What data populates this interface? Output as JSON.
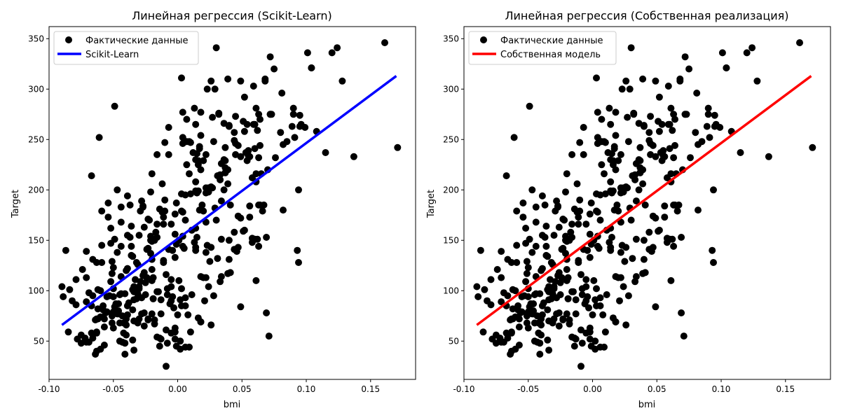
{
  "chart_data": [
    {
      "type": "scatter",
      "title": "Линейная регрессия (Scikit-Learn)",
      "xlabel": "bmi",
      "ylabel": "Target",
      "xlim": [
        -0.1,
        0.185
      ],
      "ylim": [
        12,
        362
      ],
      "xticks": [
        "-0.10",
        "-0.05",
        "0.00",
        "0.05",
        "0.10",
        "0.15"
      ],
      "yticks": [
        "50",
        "100",
        "150",
        "200",
        "250",
        "300",
        "350"
      ],
      "legend": {
        "placement": "top-left",
        "scatter_label": "Фактические данные",
        "line_label": "Scikit-Learn"
      },
      "line_color": "#0000ff",
      "line": {
        "x": [
          -0.09,
          0.17
        ],
        "y": [
          66,
          313
        ]
      }
    },
    {
      "type": "scatter",
      "title": "Линейная регрессия (Собственная реализация)",
      "xlabel": "bmi",
      "ylabel": "Target",
      "xlim": [
        -0.1,
        0.185
      ],
      "ylim": [
        12,
        362
      ],
      "xticks": [
        "-0.10",
        "-0.05",
        "0.00",
        "0.05",
        "0.10",
        "0.15"
      ],
      "yticks": [
        "50",
        "100",
        "150",
        "200",
        "250",
        "300",
        "350"
      ],
      "legend": {
        "placement": "top-left",
        "scatter_label": "Фактические данные",
        "line_label": "Собственная модель"
      },
      "line_color": "#ff0000",
      "line": {
        "x": [
          -0.09,
          0.17
        ],
        "y": [
          66,
          313
        ]
      }
    }
  ],
  "scatter_points": [
    [
      0.062,
      151
    ],
    [
      -0.051,
      75
    ],
    [
      0.044,
      141
    ],
    [
      -0.012,
      206
    ],
    [
      -0.036,
      135
    ],
    [
      -0.041,
      97
    ],
    [
      -0.047,
      138
    ],
    [
      -0.002,
      63
    ],
    [
      0.061,
      110
    ],
    [
      0.039,
      310
    ],
    [
      -0.084,
      101
    ],
    [
      0.018,
      69
    ],
    [
      -0.029,
      179
    ],
    [
      0.067,
      185
    ],
    [
      -0.026,
      118
    ],
    [
      -0.023,
      171
    ],
    [
      -0.005,
      166
    ],
    [
      0.063,
      144
    ],
    [
      -0.031,
      97
    ],
    [
      -0.044,
      168
    ],
    [
      -0.051,
      68
    ],
    [
      -0.069,
      49
    ],
    [
      -0.042,
      68
    ],
    [
      0.082,
      245
    ],
    [
      0.056,
      184
    ],
    [
      0.022,
      202
    ],
    [
      -0.021,
      137
    ],
    [
      0.006,
      85
    ],
    [
      -0.02,
      131
    ],
    [
      -0.049,
      283
    ],
    [
      0.025,
      129
    ],
    [
      -0.063,
      59
    ],
    [
      0.03,
      341
    ],
    [
      -0.046,
      87
    ],
    [
      -0.026,
      65
    ],
    [
      -0.05,
      102
    ],
    [
      0.059,
      265
    ],
    [
      0.032,
      276
    ],
    [
      0.004,
      252
    ],
    [
      0.021,
      90
    ],
    [
      0.128,
      308
    ],
    [
      0.051,
      268
    ],
    [
      -0.072,
      53
    ],
    [
      -0.013,
      52
    ],
    [
      -0.059,
      145
    ],
    [
      0.024,
      202
    ],
    [
      0.028,
      95
    ],
    [
      0.02,
      179
    ],
    [
      -0.071,
      113
    ],
    [
      0.033,
      215
    ],
    [
      -0.01,
      247
    ],
    [
      -0.038,
      88
    ],
    [
      0.058,
      212
    ],
    [
      -0.051,
      117
    ],
    [
      0.047,
      143
    ],
    [
      0.082,
      180
    ],
    [
      -0.048,
      87
    ],
    [
      -0.046,
      80
    ],
    [
      0.04,
      264
    ],
    [
      -0.066,
      53
    ],
    [
      -0.018,
      67
    ],
    [
      -0.045,
      68
    ],
    [
      0.011,
      96
    ],
    [
      -0.034,
      70
    ],
    [
      0.049,
      172
    ],
    [
      -0.04,
      66
    ],
    [
      -0.054,
      187
    ],
    [
      -0.014,
      45
    ],
    [
      0.014,
      162
    ],
    [
      -0.047,
      200
    ],
    [
      0.091,
      252
    ],
    [
      -0.028,
      93
    ],
    [
      0.015,
      236
    ],
    [
      0.09,
      281
    ],
    [
      0.004,
      154
    ],
    [
      -0.028,
      77
    ],
    [
      0.052,
      258
    ],
    [
      -0.063,
      128
    ],
    [
      -0.026,
      78
    ],
    [
      -0.075,
      48
    ],
    [
      0.003,
      85
    ],
    [
      -0.067,
      58
    ],
    [
      0.049,
      233
    ],
    [
      -0.056,
      78
    ],
    [
      0.014,
      230
    ],
    [
      -0.016,
      99
    ],
    [
      0.037,
      217
    ],
    [
      -0.001,
      187
    ],
    [
      0.027,
      202
    ],
    [
      -0.024,
      141
    ],
    [
      0.015,
      197
    ],
    [
      0.063,
      185
    ],
    [
      0.115,
      237
    ],
    [
      0.026,
      308
    ],
    [
      -0.034,
      91
    ],
    [
      0.009,
      216
    ],
    [
      -0.007,
      141
    ],
    [
      -0.002,
      59
    ],
    [
      0.045,
      273
    ],
    [
      0.075,
      320
    ],
    [
      -0.008,
      48
    ],
    [
      -0.063,
      58
    ],
    [
      0.02,
      113
    ],
    [
      0.052,
      292
    ],
    [
      0.036,
      230
    ],
    [
      -0.014,
      181
    ],
    [
      -0.011,
      128
    ],
    [
      0.039,
      206
    ],
    [
      0.007,
      270
    ],
    [
      0.018,
      254
    ],
    [
      -0.036,
      164
    ],
    [
      0.071,
      55
    ],
    [
      -0.002,
      156
    ],
    [
      -0.06,
      74
    ],
    [
      0.026,
      203
    ],
    [
      -0.022,
      170
    ],
    [
      0.031,
      214
    ],
    [
      -0.005,
      111
    ],
    [
      0.013,
      281
    ],
    [
      -0.052,
      162
    ],
    [
      0.124,
      341
    ],
    [
      0.017,
      241
    ],
    [
      -0.03,
      104
    ],
    [
      -0.044,
      114
    ],
    [
      0.004,
      246
    ],
    [
      -0.078,
      52
    ],
    [
      -0.023,
      72
    ],
    [
      0.034,
      114
    ],
    [
      -0.036,
      144
    ],
    [
      -0.017,
      158
    ],
    [
      0.066,
      179
    ],
    [
      0.031,
      132
    ],
    [
      -0.002,
      133
    ],
    [
      -0.057,
      46
    ],
    [
      0.036,
      266
    ],
    [
      -0.016,
      166
    ],
    [
      -0.059,
      179
    ],
    [
      0.026,
      66
    ],
    [
      -0.052,
      109
    ],
    [
      -0.045,
      96
    ],
    [
      -0.032,
      128
    ],
    [
      0.096,
      265
    ],
    [
      -0.04,
      72
    ],
    [
      0.006,
      93
    ],
    [
      -0.062,
      72
    ],
    [
      0.002,
      42
    ],
    [
      -0.079,
      86
    ],
    [
      -0.069,
      98
    ],
    [
      -0.043,
      49
    ],
    [
      0.047,
      244
    ],
    [
      -0.019,
      92
    ],
    [
      -0.018,
      71
    ],
    [
      -0.008,
      102
    ],
    [
      0.008,
      76
    ],
    [
      -0.015,
      99
    ],
    [
      0.062,
      259
    ],
    [
      0.034,
      151
    ],
    [
      -0.001,
      45
    ],
    [
      0.053,
      237
    ],
    [
      0.06,
      241
    ],
    [
      -0.074,
      121
    ],
    [
      0.058,
      152
    ],
    [
      -0.035,
      51
    ],
    [
      -0.039,
      194
    ],
    [
      -0.01,
      190
    ],
    [
      0.069,
      153
    ],
    [
      -0.013,
      77
    ],
    [
      0.076,
      232
    ],
    [
      -0.01,
      179
    ],
    [
      -0.034,
      99
    ],
    [
      0.022,
      138
    ],
    [
      -0.071,
      49
    ],
    [
      0.08,
      257
    ],
    [
      0.072,
      275
    ],
    [
      0.055,
      234
    ],
    [
      0.089,
      263
    ],
    [
      -0.005,
      104
    ],
    [
      -0.001,
      146
    ],
    [
      -0.032,
      92
    ],
    [
      -0.064,
      71
    ],
    [
      0.018,
      220
    ],
    [
      0.056,
      233
    ],
    [
      -0.006,
      87
    ],
    [
      -0.025,
      96
    ],
    [
      -0.05,
      123
    ],
    [
      -0.002,
      52
    ],
    [
      -0.062,
      82
    ],
    [
      -0.02,
      149
    ],
    [
      0.0,
      76
    ],
    [
      -0.057,
      64
    ],
    [
      0.005,
      142
    ],
    [
      0.032,
      275
    ],
    [
      -0.039,
      155
    ],
    [
      0.016,
      229
    ],
    [
      0.018,
      277
    ],
    [
      -0.066,
      131
    ],
    [
      0.044,
      257
    ],
    [
      -0.023,
      142
    ],
    [
      0.073,
      275
    ],
    [
      -0.037,
      153
    ],
    [
      0.041,
      118
    ],
    [
      -0.009,
      116
    ],
    [
      0.004,
      144
    ],
    [
      0.014,
      199
    ],
    [
      -0.035,
      101
    ],
    [
      0.039,
      220
    ],
    [
      -0.082,
      90
    ],
    [
      -0.066,
      95
    ],
    [
      0.059,
      303
    ],
    [
      -0.011,
      173
    ],
    [
      -0.046,
      77
    ],
    [
      0.108,
      258
    ],
    [
      0.003,
      179
    ],
    [
      -0.071,
      139
    ],
    [
      0.045,
      235
    ],
    [
      -0.041,
      48
    ],
    [
      0.049,
      308
    ],
    [
      0.063,
      275
    ],
    [
      -0.027,
      184
    ],
    [
      -0.013,
      91
    ],
    [
      -0.044,
      144
    ],
    [
      0.061,
      281
    ],
    [
      0.041,
      185
    ],
    [
      0.046,
      139
    ],
    [
      0.002,
      91
    ],
    [
      0.02,
      229
    ],
    [
      0.049,
      84
    ],
    [
      0.009,
      248
    ],
    [
      0.064,
      244
    ],
    [
      0.016,
      225
    ],
    [
      -0.05,
      63
    ],
    [
      0.029,
      300
    ],
    [
      -0.035,
      81
    ],
    [
      0.039,
      117
    ],
    [
      0.014,
      208
    ],
    [
      -0.02,
      77
    ],
    [
      -0.052,
      147
    ],
    [
      -0.034,
      104
    ],
    [
      -0.016,
      54
    ],
    [
      -0.051,
      129
    ],
    [
      0.104,
      321
    ],
    [
      -0.029,
      109
    ],
    [
      -0.045,
      50
    ],
    [
      -0.011,
      130
    ],
    [
      0.023,
      145
    ],
    [
      -0.007,
      235
    ],
    [
      0.07,
      220
    ],
    [
      0.029,
      182
    ],
    [
      0.064,
      270
    ],
    [
      0.065,
      216
    ],
    [
      0.034,
      226
    ],
    [
      0.104,
      321
    ],
    [
      -0.005,
      58
    ],
    [
      0.06,
      265
    ],
    [
      0.072,
      275
    ],
    [
      0.054,
      265
    ],
    [
      -0.059,
      128
    ],
    [
      0.036,
      200
    ],
    [
      -0.044,
      97
    ],
    [
      0.006,
      195
    ],
    [
      -0.039,
      85
    ],
    [
      0.014,
      143
    ],
    [
      0.016,
      199
    ],
    [
      0.01,
      196
    ],
    [
      0.022,
      113
    ],
    [
      0.069,
      78
    ],
    [
      0.033,
      109
    ],
    [
      -0.012,
      178
    ],
    [
      0.007,
      225
    ],
    [
      0.022,
      197
    ],
    [
      -0.014,
      53
    ],
    [
      0.004,
      277
    ],
    [
      0.034,
      189
    ],
    [
      -0.063,
      40
    ],
    [
      0.003,
      311
    ],
    [
      0.006,
      44
    ],
    [
      -0.004,
      94
    ],
    [
      0.014,
      265
    ],
    [
      -0.027,
      183
    ],
    [
      0.095,
      274
    ],
    [
      -0.079,
      111
    ],
    [
      0.171,
      242
    ],
    [
      0.037,
      222
    ],
    [
      -0.053,
      95
    ],
    [
      0.044,
      249
    ],
    [
      -0.031,
      126
    ],
    [
      0.024,
      104
    ],
    [
      -0.019,
      113
    ],
    [
      0.017,
      243
    ],
    [
      0.064,
      185
    ],
    [
      0.161,
      346
    ],
    [
      0.06,
      151
    ],
    [
      -0.057,
      72
    ],
    [
      0.068,
      310
    ],
    [
      0.001,
      110
    ],
    [
      0.037,
      242
    ],
    [
      0.085,
      248
    ],
    [
      -0.021,
      198
    ],
    [
      -0.05,
      94
    ],
    [
      -0.039,
      122
    ],
    [
      0.094,
      128
    ],
    [
      0.037,
      229
    ],
    [
      0.014,
      140
    ],
    [
      -0.067,
      85
    ],
    [
      -0.007,
      262
    ],
    [
      0.04,
      263
    ],
    [
      0.023,
      300
    ],
    [
      -0.039,
      76
    ],
    [
      -0.064,
      37
    ],
    [
      -0.087,
      140
    ],
    [
      0.137,
      233
    ],
    [
      -0.062,
      101
    ],
    [
      0.04,
      131
    ],
    [
      0.022,
      235
    ],
    [
      -0.03,
      102
    ],
    [
      0.063,
      232
    ],
    [
      -0.02,
      121
    ],
    [
      -0.049,
      84
    ],
    [
      0.094,
      200
    ],
    [
      0.016,
      73
    ],
    [
      -0.008,
      96
    ],
    [
      0.044,
      158
    ],
    [
      -0.033,
      111
    ],
    [
      0.002,
      50
    ],
    [
      -0.027,
      115
    ],
    [
      -0.025,
      108
    ],
    [
      -0.09,
      104
    ],
    [
      0.017,
      180
    ],
    [
      0.047,
      174
    ],
    [
      0.028,
      248
    ],
    [
      0.12,
      336
    ],
    [
      -0.023,
      71
    ],
    [
      0.022,
      168
    ],
    [
      0.003,
      196
    ],
    [
      0.045,
      246
    ],
    [
      -0.089,
      94
    ],
    [
      0.026,
      143
    ],
    [
      0.101,
      336
    ],
    [
      -0.03,
      155
    ],
    [
      0.056,
      173
    ],
    [
      -0.018,
      150
    ],
    [
      -0.05,
      79
    ],
    [
      0.095,
      263
    ],
    [
      0.054,
      229
    ],
    [
      0.081,
      296
    ],
    [
      0.099,
      262
    ],
    [
      -0.04,
      56
    ],
    [
      -0.028,
      189
    ],
    [
      0.01,
      247
    ],
    [
      -0.02,
      110
    ],
    [
      0.013,
      148
    ],
    [
      -0.037,
      185
    ],
    [
      0.093,
      140
    ],
    [
      0.051,
      159
    ],
    [
      0.033,
      210
    ],
    [
      -0.061,
      252
    ],
    [
      0.072,
      332
    ],
    [
      0.007,
      248
    ],
    [
      -0.06,
      42
    ],
    [
      0.024,
      198
    ],
    [
      0.068,
      308
    ],
    [
      -0.004,
      140
    ],
    [
      -0.047,
      77
    ],
    [
      0.004,
      178
    ],
    [
      -0.016,
      235
    ],
    [
      -0.034,
      41
    ],
    [
      -0.009,
      61
    ],
    [
      -0.009,
      25
    ],
    [
      -0.055,
      94
    ],
    [
      -0.031,
      68
    ],
    [
      0.01,
      59
    ],
    [
      0.03,
      170
    ],
    [
      -0.021,
      154
    ],
    [
      -0.075,
      56
    ],
    [
      -0.044,
      183
    ],
    [
      -0.043,
      75
    ],
    [
      0.019,
      185
    ],
    [
      -0.058,
      85
    ],
    [
      0.055,
      239
    ],
    [
      -0.005,
      90
    ],
    [
      0.011,
      160
    ],
    [
      -0.049,
      151
    ],
    [
      -0.041,
      37
    ],
    [
      0.037,
      217
    ],
    [
      0.027,
      272
    ],
    [
      0.006,
      170
    ],
    [
      -0.067,
      214
    ],
    [
      -0.019,
      92
    ],
    [
      0.061,
      216
    ],
    [
      -0.03,
      72
    ],
    [
      -0.06,
      100
    ],
    [
      0.09,
      275
    ],
    [
      -0.035,
      134
    ],
    [
      -0.02,
      216
    ],
    [
      0.061,
      208
    ],
    [
      -0.024,
      113
    ],
    [
      -0.054,
      173
    ],
    [
      0.001,
      150
    ],
    [
      -0.021,
      150
    ],
    [
      -0.085,
      59
    ],
    [
      -0.026,
      163
    ],
    [
      0.003,
      102
    ],
    [
      -0.071,
      89
    ],
    [
      0.052,
      160
    ],
    [
      -0.04,
      120
    ],
    [
      0.058,
      148
    ],
    [
      -0.003,
      83
    ],
    [
      0.018,
      69
    ],
    [
      0.015,
      153
    ],
    [
      -0.002,
      176
    ],
    [
      -0.063,
      72
    ],
    [
      -0.055,
      79
    ],
    [
      0.012,
      237
    ],
    [
      0.009,
      44
    ],
    [
      -0.058,
      81
    ],
    [
      -0.016,
      153
    ],
    [
      0.04,
      150
    ],
    [
      -0.011,
      166
    ],
    [
      0.018,
      114
    ],
    [
      -0.042,
      58
    ]
  ]
}
